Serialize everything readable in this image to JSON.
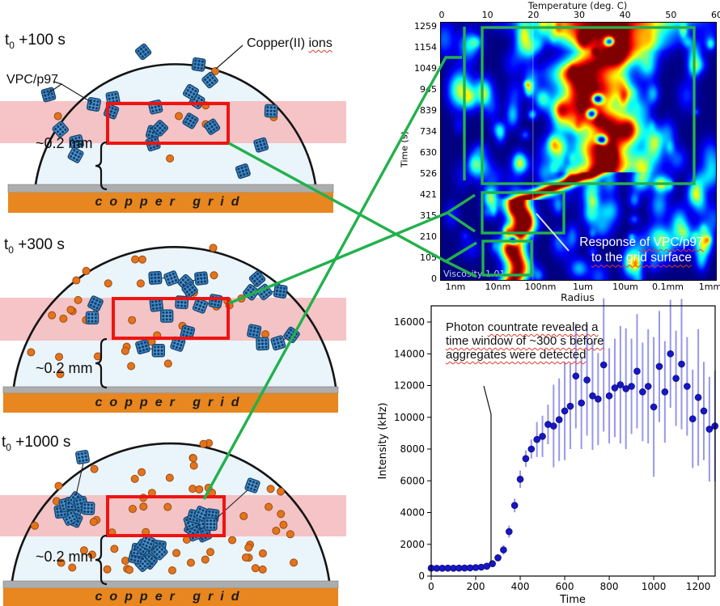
{
  "left_panel": {
    "diagrams": [
      {
        "time_label": {
          "prefix": "t",
          "sub": "0",
          "suffix": " +100 s"
        },
        "vpc_label": "VPC/p97",
        "copper_label": {
          "plain": "Copper(II) ",
          "wavy": "ions"
        },
        "thickness_label": "~0.2 mm",
        "grid_label": "copper grid",
        "particles": {
          "vpc_count": 21,
          "ion_count": 7,
          "arrangement": "dispersed"
        }
      },
      {
        "time_label": {
          "prefix": "t",
          "sub": "0",
          "suffix": " +300 s"
        },
        "thickness_label": "~0.2 mm",
        "grid_label": "copper grid",
        "particles": {
          "vpc_count": 24,
          "ion_count": 32,
          "arrangement": "pairing"
        }
      },
      {
        "time_label": {
          "prefix": "t",
          "sub": "0",
          "suffix": " +1000 s"
        },
        "thickness_label": "~0.2 mm",
        "grid_label": "copper grid",
        "particles": {
          "vpc_count": 32,
          "ion_count": 62,
          "arrangement": "aggregated"
        }
      }
    ]
  },
  "heatmap": {
    "top_axis_label": "Temperature (deg. C)",
    "top_ticks": [
      "0",
      "10",
      "20",
      "30",
      "40",
      "50",
      "60"
    ],
    "y_axis_label": "Time (s)",
    "y_ticks": [
      "1259",
      "1154",
      "1049",
      "945",
      "839",
      "734",
      "630",
      "526",
      "421",
      "315",
      "210",
      "105",
      "0"
    ],
    "x_axis_label": "Radius",
    "x_ticks": [
      "1nm",
      "10nm",
      "100nm",
      "1um",
      "10um",
      "0.1mm",
      "1mm"
    ],
    "corner_label": "Viscosity 1.01",
    "annotation": {
      "line1_plain": "Response ",
      "line1_wavy": "of VPC/p97",
      "line2_wavy": "to the grid surface"
    }
  },
  "scatter": {
    "x_axis_label": "Time",
    "y_axis_label": "Intensity (kHz)",
    "x_ticks": [
      0,
      200,
      400,
      600,
      800,
      1000,
      1200
    ],
    "y_ticks": [
      0,
      2000,
      4000,
      6000,
      8000,
      10000,
      12000,
      14000,
      16000
    ],
    "annotation": {
      "plain": "Photon ",
      "wavy": "countrate revealed a time window of ~300 s before aggregates were detected"
    }
  },
  "chart_data": [
    {
      "type": "heatmap",
      "title": "",
      "top_axis_label": "Temperature (deg. C)",
      "top_axis_ticks": [
        0,
        10,
        20,
        30,
        40,
        50,
        60
      ],
      "ylabel": "Time (s)",
      "y_ticks": [
        1259,
        1154,
        1049,
        945,
        839,
        734,
        630,
        526,
        421,
        315,
        210,
        105,
        0
      ],
      "xlabel": "Radius",
      "x_scale": "log",
      "x_tick_labels": [
        "1nm",
        "10nm",
        "100nm",
        "1um",
        "10um",
        "0.1mm",
        "1mm"
      ],
      "colormap": "jet",
      "corner_label": "Viscosity 1.01",
      "description": "Size distribution vs time: narrow intense peak near 10-30 nm for t < ~420 s (response of VPC/p97 to the grid surface), transitioning between ~420-540 s toward ~1-10 um, then a broad wandering high-intensity band around 1-10 um up to 1259 s; dark blue background, 20 deg C vertical gridline.",
      "highlighted_regions": [
        {
          "time_range": [
            440,
            1259
          ],
          "radius_range": [
            "~4nm",
            "~0.5mm"
          ],
          "note": "large green box, aggregates regime"
        },
        {
          "time_range": [
            190,
            430
          ],
          "radius_range": [
            "~4nm",
            "~350nm"
          ],
          "note": "green box around transition"
        },
        {
          "time_range": [
            0,
            190
          ],
          "radius_range": [
            "~4nm",
            "~60nm"
          ],
          "note": "green box around grid-surface response"
        }
      ]
    },
    {
      "type": "scatter",
      "xlabel": "Time",
      "ylabel": "Intensity (kHz)",
      "xlim": [
        0,
        1280
      ],
      "ylim": [
        0,
        17000
      ],
      "x": [
        0,
        25,
        50,
        75,
        100,
        125,
        150,
        175,
        200,
        225,
        250,
        275,
        300,
        325,
        350,
        375,
        400,
        425,
        450,
        475,
        500,
        525,
        550,
        575,
        600,
        625,
        650,
        675,
        700,
        725,
        750,
        775,
        800,
        825,
        850,
        875,
        900,
        925,
        950,
        975,
        1000,
        1025,
        1050,
        1075,
        1100,
        1125,
        1150,
        1175,
        1200,
        1225,
        1250,
        1275
      ],
      "y": [
        500,
        490,
        495,
        500,
        495,
        500,
        505,
        515,
        535,
        560,
        620,
        780,
        1150,
        1650,
        2800,
        4450,
        6100,
        7400,
        8000,
        8600,
        8800,
        9550,
        9450,
        9850,
        10400,
        10700,
        12600,
        10900,
        12350,
        11350,
        11150,
        13300,
        11350,
        11850,
        12050,
        11800,
        11950,
        12900,
        11600,
        11950,
        10650,
        13200,
        11600,
        14000,
        12450,
        13350,
        11950,
        9900,
        11250,
        10400,
        9250,
        9450
      ],
      "yerr": [
        60,
        60,
        60,
        60,
        60,
        60,
        70,
        70,
        80,
        90,
        110,
        150,
        220,
        300,
        380,
        430,
        550,
        520,
        600,
        1100,
        1300,
        1250,
        2600,
        2600,
        3100,
        2700,
        3300,
        2900,
        3500,
        3400,
        2900,
        4200,
        3000,
        3100,
        3700,
        3800,
        3000,
        3600,
        3100,
        3600,
        4400,
        3500,
        3200,
        3400,
        3000,
        4100,
        3100,
        3100,
        4300,
        3100,
        3300,
        3500
      ]
    }
  ],
  "colors": {
    "connector_green": "#22b14c",
    "highlight_red": "#ee1411",
    "band_pink": "#f4babc",
    "ion_orange": "#e4731e",
    "vpc_blue": "#3e86c6",
    "grid_orange": "#e8861f",
    "heatmap_background": "#000080",
    "errorbar_blue": "#8c8cec",
    "point_blue": "#1616c8"
  }
}
